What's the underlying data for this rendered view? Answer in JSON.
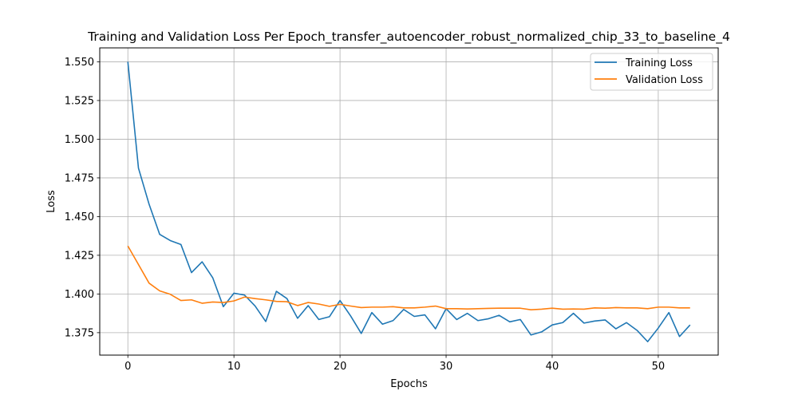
{
  "chart_data": {
    "type": "line",
    "title": "Training and Validation Loss Per Epoch_transfer_autoencoder_robust_normalized_chip_33_to_baseline_4",
    "xlabel": "Epochs",
    "ylabel": "Loss",
    "xlim": [
      -2.65,
      55.65
    ],
    "ylim": [
      1.3605,
      1.559
    ],
    "xticks": [
      0,
      10,
      20,
      30,
      40,
      50
    ],
    "yticks": [
      1.375,
      1.4,
      1.425,
      1.45,
      1.475,
      1.5,
      1.525,
      1.55
    ],
    "xtick_labels": [
      "0",
      "10",
      "20",
      "30",
      "40",
      "50"
    ],
    "ytick_labels": [
      "1.375",
      "1.400",
      "1.425",
      "1.450",
      "1.475",
      "1.500",
      "1.525",
      "1.550"
    ],
    "grid": true,
    "legend_position": "top-right",
    "x": [
      0,
      1,
      2,
      3,
      4,
      5,
      6,
      7,
      8,
      9,
      10,
      11,
      12,
      13,
      14,
      15,
      16,
      17,
      18,
      19,
      20,
      21,
      22,
      23,
      24,
      25,
      26,
      27,
      28,
      29,
      30,
      31,
      32,
      33,
      34,
      35,
      36,
      37,
      38,
      39,
      40,
      41,
      42,
      43,
      44,
      45,
      46,
      47,
      48,
      49,
      50,
      51,
      52,
      53
    ],
    "series": [
      {
        "name": "Training Loss",
        "color": "#1f77b4",
        "values": [
          1.55,
          1.4813,
          1.458,
          1.4385,
          1.4345,
          1.432,
          1.4138,
          1.4208,
          1.4105,
          1.3918,
          1.4005,
          1.3993,
          1.3922,
          1.3822,
          1.4017,
          1.397,
          1.3843,
          1.3925,
          1.3835,
          1.3853,
          1.3958,
          1.3858,
          1.3745,
          1.388,
          1.3805,
          1.3828,
          1.39,
          1.3855,
          1.3865,
          1.3775,
          1.3905,
          1.3835,
          1.3875,
          1.3828,
          1.384,
          1.3862,
          1.382,
          1.3835,
          1.3735,
          1.3755,
          1.38,
          1.3815,
          1.3875,
          1.3812,
          1.3825,
          1.3832,
          1.3775,
          1.3815,
          1.3765,
          1.3692,
          1.378,
          1.388,
          1.3725,
          1.38
        ]
      },
      {
        "name": "Validation Loss",
        "color": "#ff7f0e",
        "values": [
          1.431,
          1.419,
          1.407,
          1.402,
          1.3998,
          1.3958,
          1.3962,
          1.394,
          1.3948,
          1.3945,
          1.3955,
          1.398,
          1.397,
          1.3962,
          1.3952,
          1.395,
          1.3925,
          1.3945,
          1.3935,
          1.392,
          1.3933,
          1.3922,
          1.3912,
          1.3915,
          1.3915,
          1.3918,
          1.391,
          1.391,
          1.3915,
          1.3922,
          1.3905,
          1.3905,
          1.3903,
          1.3905,
          1.3907,
          1.3908,
          1.3908,
          1.3908,
          1.3898,
          1.3902,
          1.3908,
          1.3902,
          1.3903,
          1.3902,
          1.391,
          1.3908,
          1.3912,
          1.391,
          1.391,
          1.3905,
          1.3915,
          1.3915,
          1.391,
          1.391
        ]
      }
    ]
  }
}
